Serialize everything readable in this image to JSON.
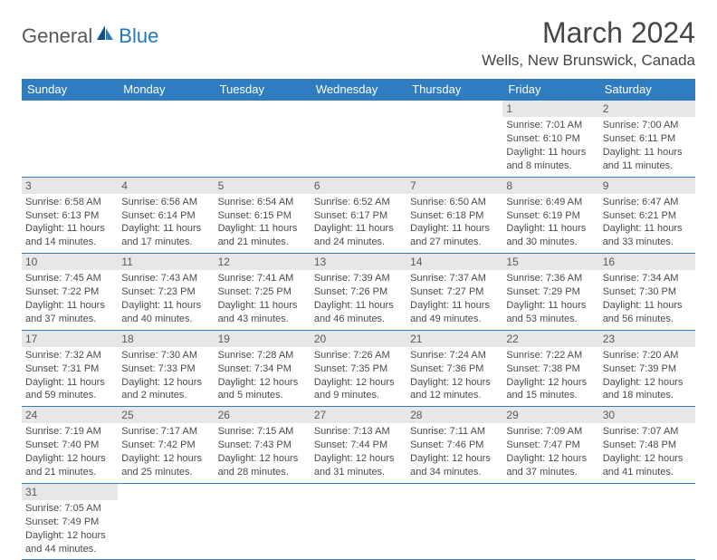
{
  "brand": {
    "general": "General",
    "blue": "Blue"
  },
  "title": "March 2024",
  "location": "Wells, New Brunswick, Canada",
  "colors": {
    "header_bg": "#2f7cc0",
    "header_text": "#ffffff",
    "border": "#2f7cc0",
    "daynum_bg": "#e7e7e7",
    "text": "#4a4a4a",
    "logo_gray": "#56595b",
    "logo_blue": "#1f78c2"
  },
  "day_headers": [
    "Sunday",
    "Monday",
    "Tuesday",
    "Wednesday",
    "Thursday",
    "Friday",
    "Saturday"
  ],
  "weeks": [
    [
      {
        "blank": true
      },
      {
        "blank": true
      },
      {
        "blank": true
      },
      {
        "blank": true
      },
      {
        "blank": true
      },
      {
        "n": "1",
        "sr": "Sunrise: 7:01 AM",
        "ss": "Sunset: 6:10 PM",
        "dl": "Daylight: 11 hours and 8 minutes."
      },
      {
        "n": "2",
        "sr": "Sunrise: 7:00 AM",
        "ss": "Sunset: 6:11 PM",
        "dl": "Daylight: 11 hours and 11 minutes."
      }
    ],
    [
      {
        "n": "3",
        "sr": "Sunrise: 6:58 AM",
        "ss": "Sunset: 6:13 PM",
        "dl": "Daylight: 11 hours and 14 minutes."
      },
      {
        "n": "4",
        "sr": "Sunrise: 6:56 AM",
        "ss": "Sunset: 6:14 PM",
        "dl": "Daylight: 11 hours and 17 minutes."
      },
      {
        "n": "5",
        "sr": "Sunrise: 6:54 AM",
        "ss": "Sunset: 6:15 PM",
        "dl": "Daylight: 11 hours and 21 minutes."
      },
      {
        "n": "6",
        "sr": "Sunrise: 6:52 AM",
        "ss": "Sunset: 6:17 PM",
        "dl": "Daylight: 11 hours and 24 minutes."
      },
      {
        "n": "7",
        "sr": "Sunrise: 6:50 AM",
        "ss": "Sunset: 6:18 PM",
        "dl": "Daylight: 11 hours and 27 minutes."
      },
      {
        "n": "8",
        "sr": "Sunrise: 6:49 AM",
        "ss": "Sunset: 6:19 PM",
        "dl": "Daylight: 11 hours and 30 minutes."
      },
      {
        "n": "9",
        "sr": "Sunrise: 6:47 AM",
        "ss": "Sunset: 6:21 PM",
        "dl": "Daylight: 11 hours and 33 minutes."
      }
    ],
    [
      {
        "n": "10",
        "sr": "Sunrise: 7:45 AM",
        "ss": "Sunset: 7:22 PM",
        "dl": "Daylight: 11 hours and 37 minutes."
      },
      {
        "n": "11",
        "sr": "Sunrise: 7:43 AM",
        "ss": "Sunset: 7:23 PM",
        "dl": "Daylight: 11 hours and 40 minutes."
      },
      {
        "n": "12",
        "sr": "Sunrise: 7:41 AM",
        "ss": "Sunset: 7:25 PM",
        "dl": "Daylight: 11 hours and 43 minutes."
      },
      {
        "n": "13",
        "sr": "Sunrise: 7:39 AM",
        "ss": "Sunset: 7:26 PM",
        "dl": "Daylight: 11 hours and 46 minutes."
      },
      {
        "n": "14",
        "sr": "Sunrise: 7:37 AM",
        "ss": "Sunset: 7:27 PM",
        "dl": "Daylight: 11 hours and 49 minutes."
      },
      {
        "n": "15",
        "sr": "Sunrise: 7:36 AM",
        "ss": "Sunset: 7:29 PM",
        "dl": "Daylight: 11 hours and 53 minutes."
      },
      {
        "n": "16",
        "sr": "Sunrise: 7:34 AM",
        "ss": "Sunset: 7:30 PM",
        "dl": "Daylight: 11 hours and 56 minutes."
      }
    ],
    [
      {
        "n": "17",
        "sr": "Sunrise: 7:32 AM",
        "ss": "Sunset: 7:31 PM",
        "dl": "Daylight: 11 hours and 59 minutes."
      },
      {
        "n": "18",
        "sr": "Sunrise: 7:30 AM",
        "ss": "Sunset: 7:33 PM",
        "dl": "Daylight: 12 hours and 2 minutes."
      },
      {
        "n": "19",
        "sr": "Sunrise: 7:28 AM",
        "ss": "Sunset: 7:34 PM",
        "dl": "Daylight: 12 hours and 5 minutes."
      },
      {
        "n": "20",
        "sr": "Sunrise: 7:26 AM",
        "ss": "Sunset: 7:35 PM",
        "dl": "Daylight: 12 hours and 9 minutes."
      },
      {
        "n": "21",
        "sr": "Sunrise: 7:24 AM",
        "ss": "Sunset: 7:36 PM",
        "dl": "Daylight: 12 hours and 12 minutes."
      },
      {
        "n": "22",
        "sr": "Sunrise: 7:22 AM",
        "ss": "Sunset: 7:38 PM",
        "dl": "Daylight: 12 hours and 15 minutes."
      },
      {
        "n": "23",
        "sr": "Sunrise: 7:20 AM",
        "ss": "Sunset: 7:39 PM",
        "dl": "Daylight: 12 hours and 18 minutes."
      }
    ],
    [
      {
        "n": "24",
        "sr": "Sunrise: 7:19 AM",
        "ss": "Sunset: 7:40 PM",
        "dl": "Daylight: 12 hours and 21 minutes."
      },
      {
        "n": "25",
        "sr": "Sunrise: 7:17 AM",
        "ss": "Sunset: 7:42 PM",
        "dl": "Daylight: 12 hours and 25 minutes."
      },
      {
        "n": "26",
        "sr": "Sunrise: 7:15 AM",
        "ss": "Sunset: 7:43 PM",
        "dl": "Daylight: 12 hours and 28 minutes."
      },
      {
        "n": "27",
        "sr": "Sunrise: 7:13 AM",
        "ss": "Sunset: 7:44 PM",
        "dl": "Daylight: 12 hours and 31 minutes."
      },
      {
        "n": "28",
        "sr": "Sunrise: 7:11 AM",
        "ss": "Sunset: 7:46 PM",
        "dl": "Daylight: 12 hours and 34 minutes."
      },
      {
        "n": "29",
        "sr": "Sunrise: 7:09 AM",
        "ss": "Sunset: 7:47 PM",
        "dl": "Daylight: 12 hours and 37 minutes."
      },
      {
        "n": "30",
        "sr": "Sunrise: 7:07 AM",
        "ss": "Sunset: 7:48 PM",
        "dl": "Daylight: 12 hours and 41 minutes."
      }
    ],
    [
      {
        "n": "31",
        "sr": "Sunrise: 7:05 AM",
        "ss": "Sunset: 7:49 PM",
        "dl": "Daylight: 12 hours and 44 minutes."
      },
      {
        "blank": true
      },
      {
        "blank": true
      },
      {
        "blank": true
      },
      {
        "blank": true
      },
      {
        "blank": true
      },
      {
        "blank": true
      }
    ]
  ]
}
